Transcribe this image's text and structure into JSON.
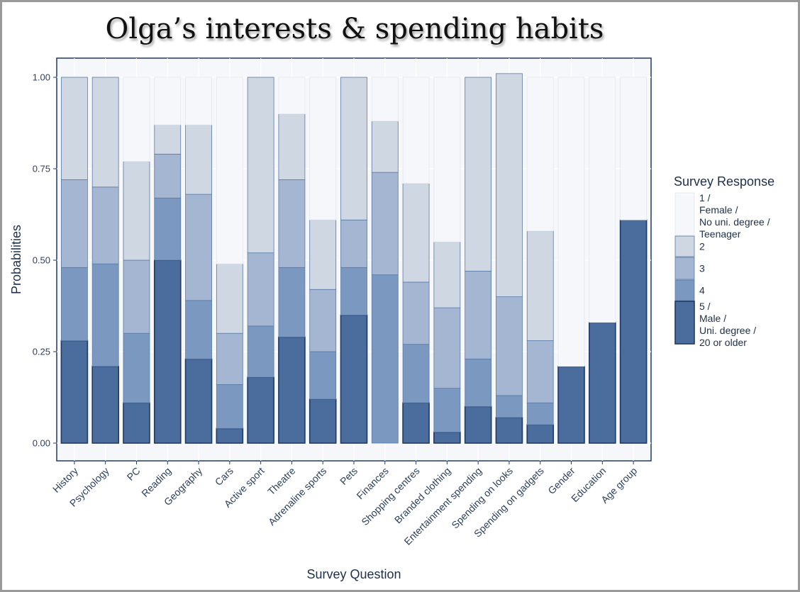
{
  "chart_data": {
    "type": "bar",
    "stacked": true,
    "title": "Olga’s interests & spending habits",
    "xlabel": "Survey Question",
    "ylabel": "Probabilities",
    "ylim": [
      0,
      1.0
    ],
    "yticks": [
      "0.00",
      "0.25",
      "0.50",
      "0.75",
      "1.00"
    ],
    "categories": [
      "History",
      "Psychology",
      "PC",
      "Reading",
      "Geography",
      "Cars",
      "Active sport",
      "Theatre",
      "Adrenaline sports",
      "Pets",
      "Finances",
      "Shopping centres",
      "Branded clothing",
      "Entertainment spending",
      "Spending on looks",
      "Spending on gadgets",
      "Gender",
      "Education",
      "Age group"
    ],
    "series": [
      {
        "name": "5 / Male / Uni. degree / 20 or older",
        "color": "#4a6d9e",
        "values": [
          0.28,
          0.21,
          0.11,
          0.5,
          0.23,
          0.04,
          0.18,
          0.29,
          0.12,
          0.35,
          0.0,
          0.11,
          0.03,
          0.1,
          0.07,
          0.05,
          0.21,
          0.33,
          0.61
        ]
      },
      {
        "name": "4",
        "color": "#7a98c0",
        "values": [
          0.2,
          0.28,
          0.19,
          0.17,
          0.16,
          0.12,
          0.14,
          0.19,
          0.13,
          0.13,
          0.46,
          0.16,
          0.12,
          0.13,
          0.06,
          0.06,
          0.0,
          0.0,
          0.0
        ]
      },
      {
        "name": "3",
        "color": "#a5b6d2",
        "values": [
          0.24,
          0.21,
          0.2,
          0.12,
          0.29,
          0.14,
          0.2,
          0.24,
          0.17,
          0.13,
          0.28,
          0.17,
          0.22,
          0.24,
          0.27,
          0.17,
          0.0,
          0.0,
          0.0
        ]
      },
      {
        "name": "2",
        "color": "#cfd7e3",
        "values": [
          0.28,
          0.3,
          0.27,
          0.08,
          0.19,
          0.19,
          0.48,
          0.18,
          0.19,
          0.39,
          0.14,
          0.27,
          0.18,
          0.53,
          0.61,
          0.3,
          0.0,
          0.0,
          0.0
        ]
      },
      {
        "name": "1 / Female / No uni. degree / Teenager",
        "color": "#f6f7fa",
        "values": [
          0.0,
          0.0,
          0.23,
          0.13,
          0.13,
          0.51,
          0.0,
          0.1,
          0.39,
          0.0,
          0.12,
          0.29,
          0.45,
          0.0,
          0.0,
          0.42,
          0.79,
          0.67,
          0.39
        ]
      }
    ],
    "legend": {
      "title": "Survey Response",
      "position": "right",
      "entries": [
        {
          "lines": [
            "1 /",
            "Female /",
            "No uni. degree /",
            "Teenager"
          ],
          "color": "#f6f7fa"
        },
        {
          "lines": [
            "2"
          ],
          "color": "#cfd7e3"
        },
        {
          "lines": [
            "3"
          ],
          "color": "#a5b6d2"
        },
        {
          "lines": [
            "4"
          ],
          "color": "#7a98c0"
        },
        {
          "lines": [
            "5 /",
            "Male /",
            "Uni. degree /",
            "20 or older"
          ],
          "color": "#4a6d9e"
        }
      ]
    },
    "colors": {
      "panel_bg": "#f6f7fa",
      "bar_outline": "#1f3a66",
      "axis": "#1f3a66"
    }
  }
}
